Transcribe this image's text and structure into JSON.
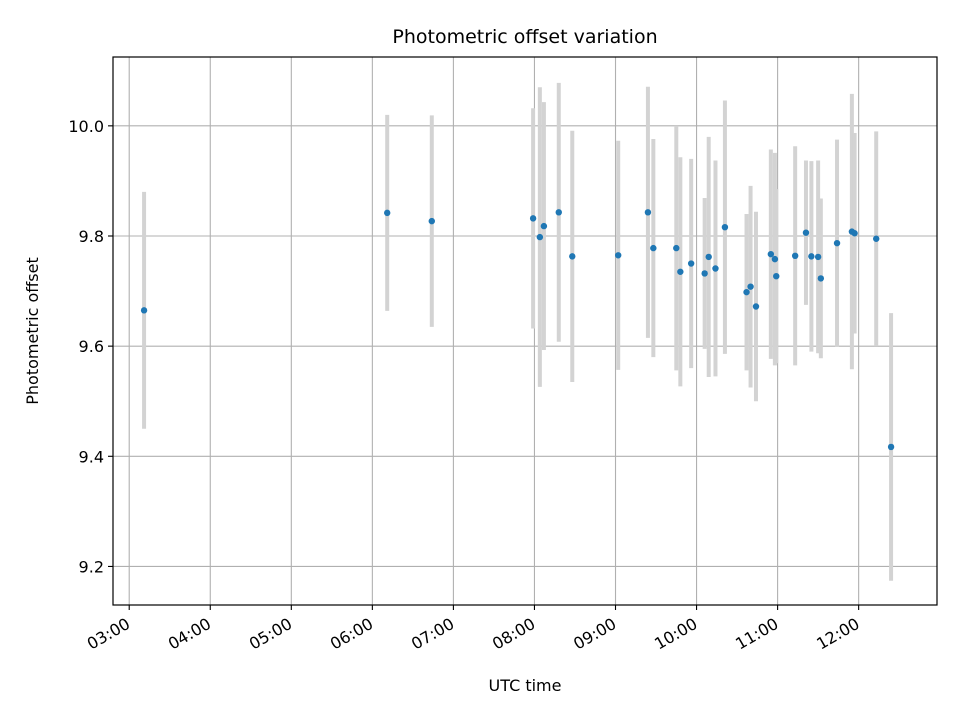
{
  "chart_data": {
    "type": "scatter",
    "title": "Photometric offset variation",
    "xlabel": "UTC time",
    "ylabel": "Photometric offset",
    "x_ticks": [
      "03:00",
      "04:00",
      "05:00",
      "06:00",
      "07:00",
      "08:00",
      "09:00",
      "10:00",
      "11:00",
      "12:00"
    ],
    "y_ticks": [
      9.2,
      9.4,
      9.6,
      9.8,
      10.0
    ],
    "ylim": [
      9.13,
      10.125
    ],
    "xlim": [
      "02:48",
      "12:58"
    ],
    "grid": true,
    "colors": {
      "point": "#1f77b4",
      "errorbar": "#d3d3d3",
      "grid": "#b0b0b0"
    },
    "points": [
      {
        "t": "03:11",
        "y": 9.665,
        "err": 0.215
      },
      {
        "t": "06:11",
        "y": 9.842,
        "err": 0.178
      },
      {
        "t": "06:44",
        "y": 9.827,
        "err": 0.192
      },
      {
        "t": "07:59",
        "y": 9.832,
        "err": 0.2
      },
      {
        "t": "08:04",
        "y": 9.798,
        "err": 0.272
      },
      {
        "t": "08:07",
        "y": 9.818,
        "err": 0.225
      },
      {
        "t": "08:18",
        "y": 9.843,
        "err": 0.235
      },
      {
        "t": "08:28",
        "y": 9.763,
        "err": 0.228
      },
      {
        "t": "09:02",
        "y": 9.765,
        "err": 0.208
      },
      {
        "t": "09:24",
        "y": 9.843,
        "err": 0.228
      },
      {
        "t": "09:28",
        "y": 9.778,
        "err": 0.198
      },
      {
        "t": "09:45",
        "y": 9.778,
        "err": 0.222
      },
      {
        "t": "09:48",
        "y": 9.735,
        "err": 0.208
      },
      {
        "t": "09:56",
        "y": 9.75,
        "err": 0.19
      },
      {
        "t": "10:06",
        "y": 9.732,
        "err": 0.137
      },
      {
        "t": "10:09",
        "y": 9.762,
        "err": 0.218
      },
      {
        "t": "10:14",
        "y": 9.741,
        "err": 0.196
      },
      {
        "t": "10:21",
        "y": 9.816,
        "err": 0.23
      },
      {
        "t": "10:37",
        "y": 9.698,
        "err": 0.142
      },
      {
        "t": "10:40",
        "y": 9.708,
        "err": 0.183
      },
      {
        "t": "10:44",
        "y": 9.672,
        "err": 0.172
      },
      {
        "t": "10:55",
        "y": 9.767,
        "err": 0.19
      },
      {
        "t": "10:58",
        "y": 9.758,
        "err": 0.193
      },
      {
        "t": "10:59",
        "y": 9.727,
        "err": 0.158
      },
      {
        "t": "11:13",
        "y": 9.764,
        "err": 0.199
      },
      {
        "t": "11:21",
        "y": 9.806,
        "err": 0.131
      },
      {
        "t": "11:25",
        "y": 9.763,
        "err": 0.173
      },
      {
        "t": "11:30",
        "y": 9.762,
        "err": 0.175
      },
      {
        "t": "11:32",
        "y": 9.723,
        "err": 0.145
      },
      {
        "t": "11:44",
        "y": 9.787,
        "err": 0.188
      },
      {
        "t": "11:55",
        "y": 9.808,
        "err": 0.25
      },
      {
        "t": "11:57",
        "y": 9.805,
        "err": 0.182
      },
      {
        "t": "12:13",
        "y": 9.795,
        "err": 0.195
      },
      {
        "t": "12:24",
        "y": 9.417,
        "err": 0.243
      }
    ]
  }
}
